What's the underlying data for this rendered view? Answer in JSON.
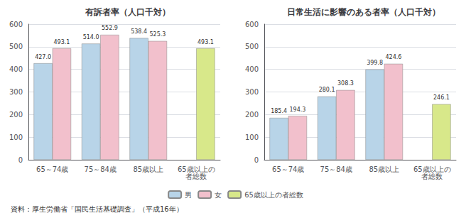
{
  "chart_data": [
    {
      "type": "bar",
      "title": "有訴者率（人口千対）",
      "categories": [
        "65～74歳",
        "75～84歳",
        "85歳以上",
        "65歳以上の\n者総数"
      ],
      "series": [
        {
          "name": "男",
          "color": "#b8d4e8",
          "values": [
            427.0,
            514.0,
            538.4,
            null
          ],
          "value_labels": [
            "427.0",
            "514.0",
            "538.4",
            null
          ]
        },
        {
          "name": "女",
          "color": "#f2c0cc",
          "values": [
            493.1,
            552.9,
            525.3,
            null
          ],
          "value_labels": [
            "493.1",
            "552.9",
            "525.3",
            null
          ]
        },
        {
          "name": "65歳以上の者総数",
          "color": "#d8e88a",
          "values": [
            null,
            null,
            null,
            493.1
          ],
          "value_labels": [
            null,
            null,
            null,
            "493.1"
          ]
        }
      ],
      "ylim": [
        0,
        600
      ],
      "yticks": [
        0,
        100,
        200,
        300,
        400,
        500,
        600
      ],
      "grid": true,
      "data_labels": true,
      "legend": "bottom"
    },
    {
      "type": "bar",
      "title": "日常生活に影響のある者率（人口千対）",
      "categories": [
        "65～74歳",
        "75～84歳",
        "85歳以上",
        "65歳以上の\n者総数"
      ],
      "series": [
        {
          "name": "男",
          "color": "#b8d4e8",
          "values": [
            185.4,
            280.1,
            399.8,
            null
          ],
          "value_labels": [
            "185.4",
            "280.1",
            "399.8",
            null
          ]
        },
        {
          "name": "女",
          "color": "#f2c0cc",
          "values": [
            194.3,
            308.3,
            424.6,
            null
          ],
          "value_labels": [
            "194.3",
            "308.3",
            "424.6",
            null
          ]
        },
        {
          "name": "65歳以上の者総数",
          "color": "#d8e88a",
          "values": [
            null,
            null,
            null,
            246.1
          ],
          "value_labels": [
            null,
            null,
            null,
            "246.1"
          ]
        }
      ],
      "ylim": [
        0,
        600
      ],
      "yticks": [
        0,
        100,
        200,
        300,
        400,
        500,
        600
      ],
      "grid": true,
      "data_labels": true,
      "legend": "bottom"
    }
  ],
  "footnote": "資料：厚生労働省「国民生活基礎調査」（平成16年）"
}
